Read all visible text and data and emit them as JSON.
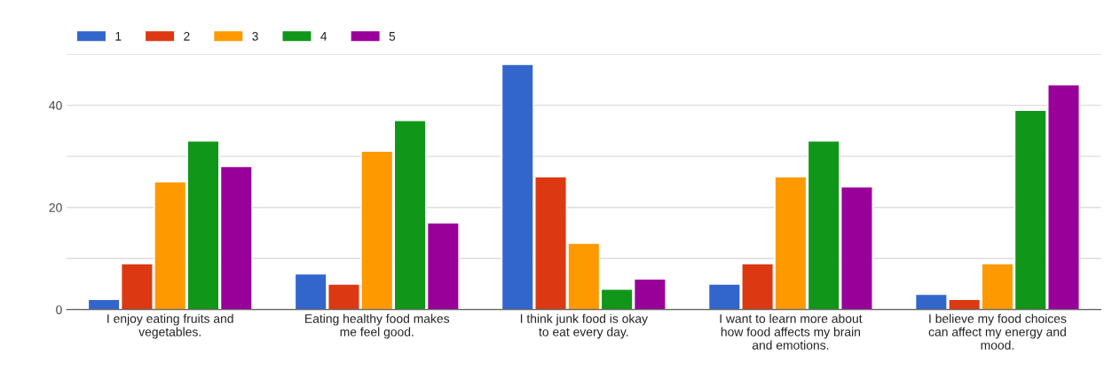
{
  "chart_data": {
    "type": "bar",
    "categories": [
      "I enjoy eating fruits and vegetables.",
      "Eating healthy food makes me feel good.",
      "I think junk food is okay to eat every day.",
      "I want to learn more about how food affects my brain and emotions.",
      "I believe my food choices can affect my energy and mood."
    ],
    "series": [
      {
        "name": "1",
        "color": "#3366cc",
        "values": [
          2,
          7,
          48,
          5,
          3
        ]
      },
      {
        "name": "2",
        "color": "#dc3912",
        "values": [
          9,
          5,
          26,
          9,
          2
        ]
      },
      {
        "name": "3",
        "color": "#ff9900",
        "values": [
          25,
          31,
          13,
          26,
          9
        ]
      },
      {
        "name": "4",
        "color": "#109618",
        "values": [
          33,
          37,
          4,
          33,
          39
        ]
      },
      {
        "name": "5",
        "color": "#990099",
        "values": [
          28,
          17,
          6,
          24,
          44
        ]
      }
    ],
    "ylim": [
      0,
      50
    ],
    "yticks": [
      0,
      {
        "value": 10,
        "label": null
      },
      20,
      {
        "value": 30,
        "label": null
      },
      40,
      {
        "value": 50,
        "label": null
      }
    ],
    "grid": "y",
    "legend": "top left"
  }
}
